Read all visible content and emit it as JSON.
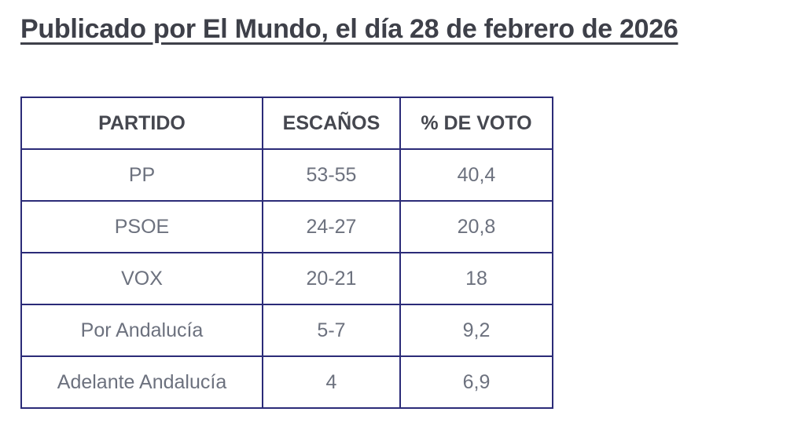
{
  "title": "Publicado por El Mundo, el día 28 de febrero de 2026",
  "colors": {
    "border": "#2b2b78",
    "header_text": "#45474f",
    "body_text": "#6c717e",
    "title_text": "#3e4049"
  },
  "table": {
    "headers": [
      "PARTIDO",
      "ESCAÑOS",
      "% DE VOTO"
    ],
    "rows": [
      {
        "partido": "PP",
        "escanos": "53-55",
        "voto": "40,4"
      },
      {
        "partido": "PSOE",
        "escanos": "24-27",
        "voto": "20,8"
      },
      {
        "partido": "VOX",
        "escanos": "20-21",
        "voto": "18"
      },
      {
        "partido": "Por Andalucía",
        "escanos": "5-7",
        "voto": "9,2"
      },
      {
        "partido": "Adelante Andalucía",
        "escanos": "4",
        "voto": "6,9"
      }
    ]
  }
}
